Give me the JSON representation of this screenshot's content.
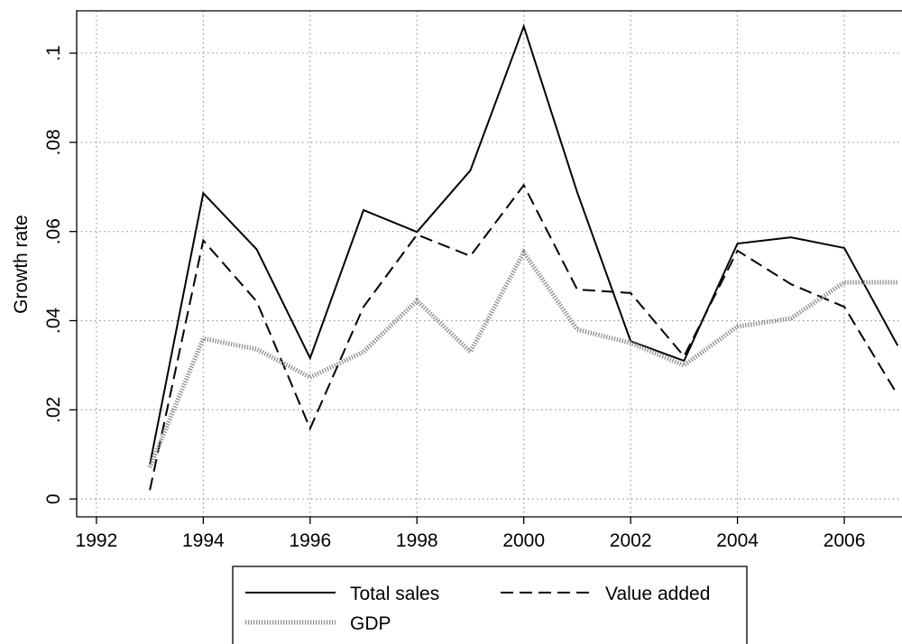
{
  "chart_data": {
    "type": "line",
    "y_label": "Growth rate",
    "x": [
      1993,
      1994,
      1995,
      1996,
      1997,
      1998,
      1999,
      2000,
      2001,
      2002,
      2003,
      2004,
      2005,
      2006,
      2007
    ],
    "series": [
      {
        "name": "Total sales",
        "color": "#000000",
        "style": "solid",
        "values": [
          0.0077,
          0.0686,
          0.056,
          0.0316,
          0.0648,
          0.0599,
          0.0737,
          0.106,
          0.0688,
          0.0354,
          0.031,
          0.0573,
          0.0587,
          0.0563,
          0.0344
        ]
      },
      {
        "name": "Value added",
        "color": "#000000",
        "style": "dashed",
        "values": [
          0.002,
          0.058,
          0.0443,
          0.0158,
          0.0431,
          0.0593,
          0.0545,
          0.0704,
          0.047,
          0.0462,
          0.032,
          0.0557,
          0.0482,
          0.0431,
          0.0233
        ]
      },
      {
        "name": "GDP",
        "color": "#8c8c8c",
        "style": "dotted",
        "values": [
          0.0071,
          0.036,
          0.0336,
          0.0273,
          0.033,
          0.0445,
          0.033,
          0.0553,
          0.038,
          0.035,
          0.03,
          0.0387,
          0.0405,
          0.0486,
          0.0486
        ]
      }
    ],
    "xlim": [
      1991.63,
      2007.08
    ],
    "xticks": [
      1992,
      1994,
      1996,
      1998,
      2000,
      2002,
      2004,
      2006
    ],
    "ylim": [
      -0.004,
      0.1095
    ],
    "yticks": [
      0,
      {
        "value": 0.02,
        "label": ".02"
      },
      {
        "value": 0.04,
        "label": ".04"
      },
      {
        "value": 0.06,
        "label": ".06"
      },
      {
        "value": 0.08,
        "label": ".08"
      },
      {
        "value": 0.1,
        "label": ".1"
      }
    ],
    "grid": true,
    "legend": "bottom"
  }
}
